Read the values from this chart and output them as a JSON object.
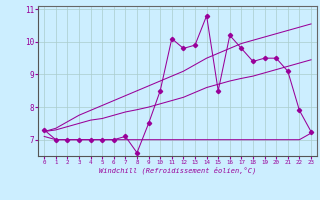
{
  "xlabel": "Windchill (Refroidissement éolien,°C)",
  "x": [
    0,
    1,
    2,
    3,
    4,
    5,
    6,
    7,
    8,
    9,
    10,
    11,
    12,
    13,
    14,
    15,
    16,
    17,
    18,
    19,
    20,
    21,
    22,
    23
  ],
  "y_main": [
    7.3,
    7.0,
    7.0,
    7.0,
    7.0,
    7.0,
    7.0,
    7.1,
    6.6,
    7.5,
    8.5,
    10.1,
    9.8,
    9.9,
    10.8,
    8.5,
    10.2,
    9.8,
    9.4,
    9.5,
    9.5,
    9.1,
    7.9,
    7.25
  ],
  "y_flat": [
    7.1,
    7.0,
    7.0,
    7.0,
    7.0,
    7.0,
    7.0,
    7.0,
    7.0,
    7.0,
    7.0,
    7.0,
    7.0,
    7.0,
    7.0,
    7.0,
    7.0,
    7.0,
    7.0,
    7.0,
    7.0,
    7.0,
    7.0,
    7.2
  ],
  "y_line1": [
    7.25,
    7.3,
    7.4,
    7.5,
    7.6,
    7.65,
    7.75,
    7.85,
    7.92,
    8.0,
    8.1,
    8.2,
    8.3,
    8.45,
    8.6,
    8.7,
    8.8,
    8.88,
    8.95,
    9.05,
    9.15,
    9.25,
    9.35,
    9.45
  ],
  "y_line2": [
    7.25,
    7.35,
    7.55,
    7.75,
    7.9,
    8.05,
    8.2,
    8.35,
    8.5,
    8.65,
    8.8,
    8.95,
    9.1,
    9.3,
    9.5,
    9.65,
    9.8,
    9.95,
    10.05,
    10.15,
    10.25,
    10.35,
    10.45,
    10.55
  ],
  "line_color": "#990099",
  "bg_color": "#cceeff",
  "grid_color": "#aacccc",
  "ylim": [
    6.5,
    11.1
  ],
  "xlim": [
    -0.5,
    23.5
  ],
  "yticks": [
    7,
    8,
    9,
    10,
    11
  ],
  "xticks": [
    0,
    1,
    2,
    3,
    4,
    5,
    6,
    7,
    8,
    9,
    10,
    11,
    12,
    13,
    14,
    15,
    16,
    17,
    18,
    19,
    20,
    21,
    22,
    23
  ]
}
